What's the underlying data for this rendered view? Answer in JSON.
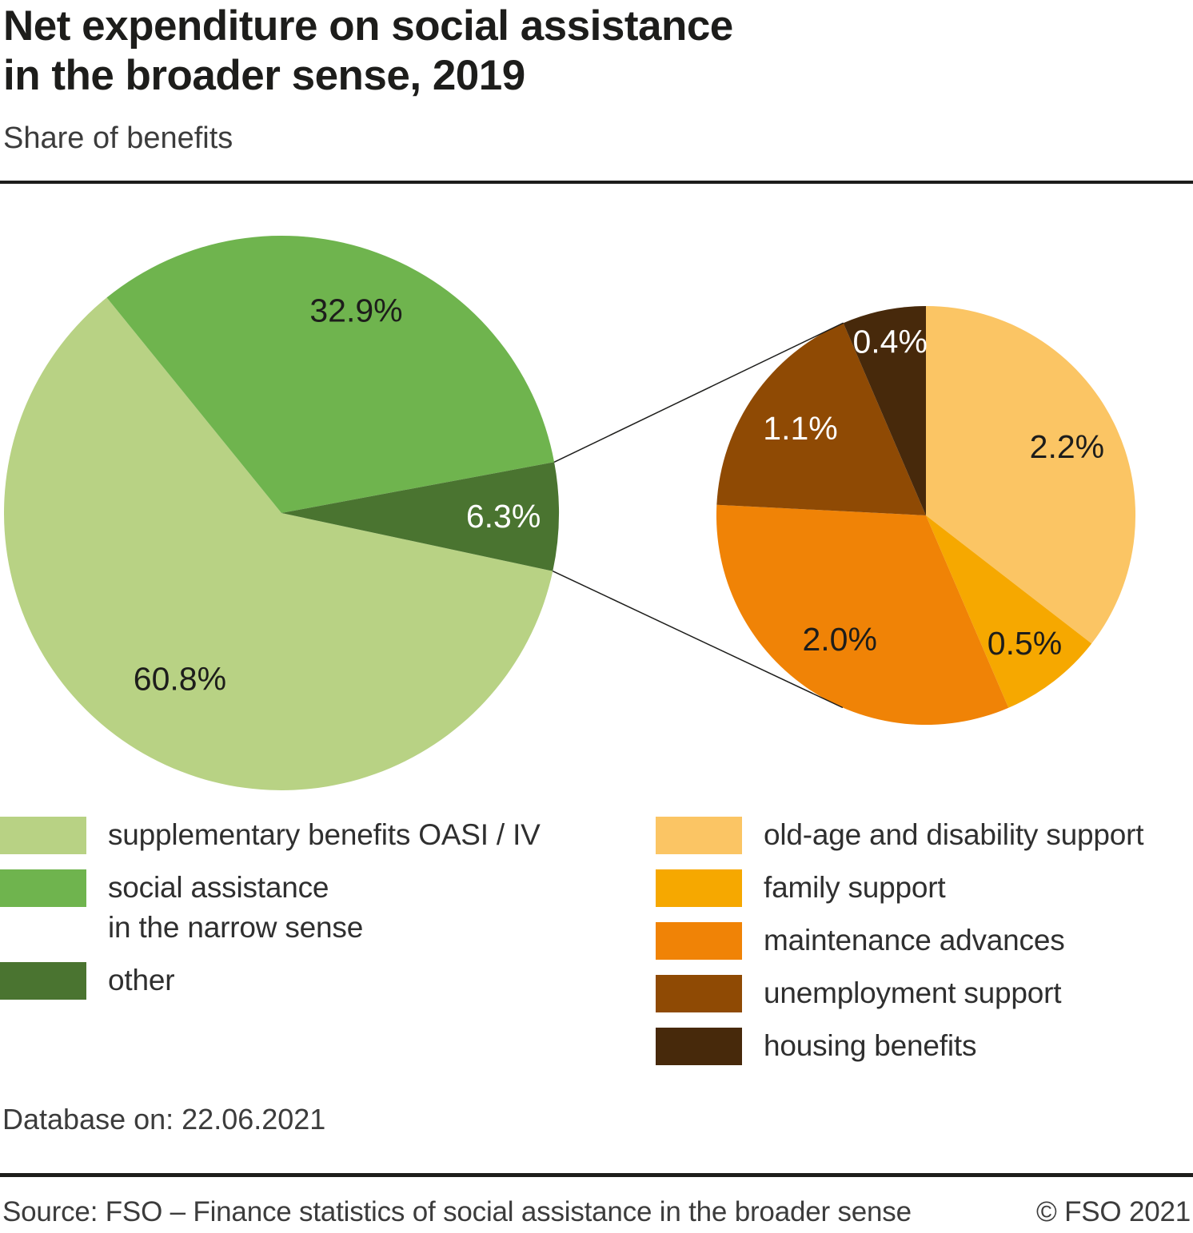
{
  "header": {
    "title_line1": "Net expenditure on social assistance",
    "title_line2": "in the broader sense, 2019",
    "subtitle": "Share of benefits"
  },
  "chart_data": [
    {
      "type": "pie",
      "name": "social-assistance-main-pie",
      "title": "Net expenditure on social assistance in the broader sense, 2019",
      "subtitle": "Share of benefits",
      "unit": "%",
      "start_angle_deg": 102.1,
      "clockwise": true,
      "legend_position": "bottom-left",
      "slices": [
        {
          "label": "supplementary benefits OASI / IV",
          "value": 60.8,
          "display": "60.8%",
          "color": "#b8d284",
          "label_color": "#1d1d1b"
        },
        {
          "label": "social assistance\nin the narrow sense",
          "value": 32.9,
          "display": "32.9%",
          "color": "#6fb44e",
          "label_color": "#1d1d1b"
        },
        {
          "label": "other",
          "value": 6.3,
          "display": "6.3%",
          "color": "#4a7430",
          "label_color": "#ffffff"
        }
      ]
    },
    {
      "type": "pie",
      "name": "other-breakdown-detail-pie",
      "title": "Breakdown of the other slice",
      "unit": "%",
      "start_angle_deg": 0,
      "clockwise": true,
      "legend_position": "bottom-right",
      "slices": [
        {
          "label": "old-age and disability support",
          "value": 2.2,
          "display": "2.2%",
          "color": "#fbc564",
          "label_color": "#1d1d1b"
        },
        {
          "label": "family support",
          "value": 0.5,
          "display": "0.5%",
          "color": "#f6a800",
          "label_color": "#1d1d1b"
        },
        {
          "label": "maintenance advances",
          "value": 2.0,
          "display": "2.0%",
          "color": "#f08306",
          "label_color": "#1d1d1b"
        },
        {
          "label": "unemployment support",
          "value": 1.1,
          "display": "1.1%",
          "color": "#8f4a04",
          "label_color": "#ffffff"
        },
        {
          "label": "housing benefits",
          "value": 0.4,
          "display": "0.4%",
          "color": "#47290b",
          "label_color": "#ffffff"
        }
      ]
    }
  ],
  "footer": {
    "database_note": "Database on: 22.06.2021",
    "source": "Source: FSO – Finance statistics of social assistance in the broader sense",
    "copyright": "© FSO 2021"
  }
}
